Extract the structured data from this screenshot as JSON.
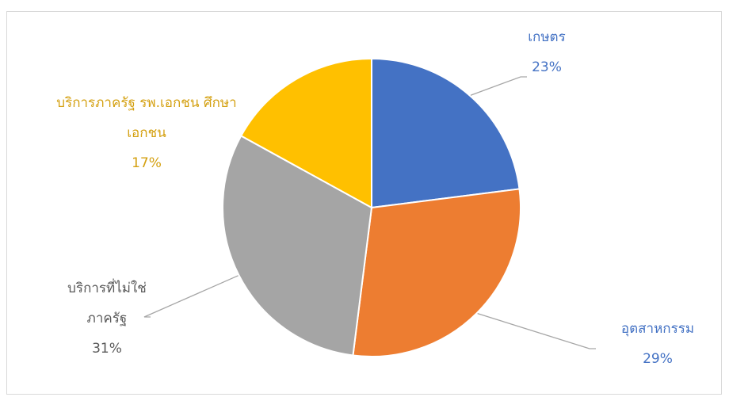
{
  "chart_data": {
    "type": "pie",
    "title": "",
    "slices": [
      {
        "label": "เกษตร",
        "value": 23,
        "value_label": "23%",
        "color": "#4472C4"
      },
      {
        "label": "อุตสาหกรรม",
        "value": 29,
        "value_label": "29%",
        "color": "#ED7D31"
      },
      {
        "label": "บริการที่ไม่ใช่ภาครัฐ",
        "label_lines": [
          "บริการที่ไม่ใช่",
          "ภาครัฐ"
        ],
        "value": 31,
        "value_label": "31%",
        "color": "#A5A5A5"
      },
      {
        "label": "บริการภาครัฐ รพ.เอกชน ศึกษาเอกชน",
        "label_lines": [
          "บริการภาครัฐ รพ.เอกชน ศึกษา",
          "เอกชน"
        ],
        "value": 17,
        "value_label": "17%",
        "color": "#FFC000"
      }
    ],
    "legend": "none",
    "label_color_gray": "#595959",
    "leader_line_color": "#A6A6A6"
  }
}
